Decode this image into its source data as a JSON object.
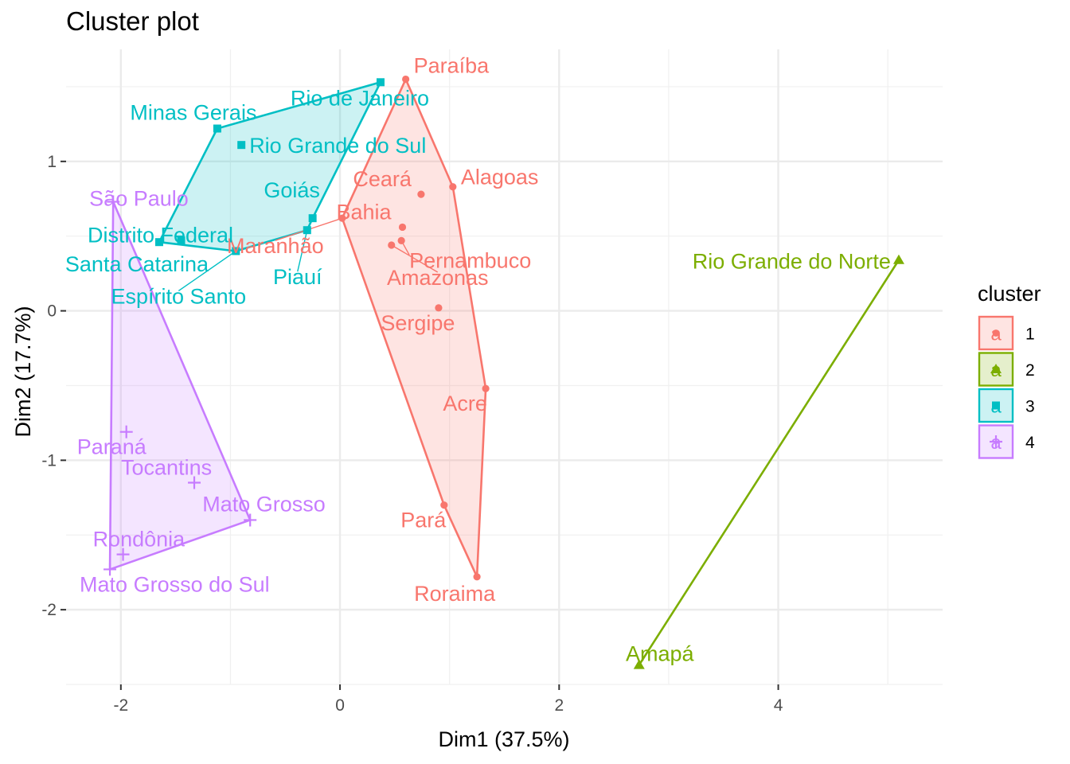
{
  "chart_data": {
    "type": "scatter",
    "title": "Cluster plot",
    "xlabel": "Dim1 (37.5%)",
    "ylabel": "Dim2 (17.7%)",
    "xlim": [
      -2.5,
      5.5
    ],
    "ylim": [
      -2.5,
      1.75
    ],
    "x_ticks": [
      -2,
      0,
      2,
      4
    ],
    "y_ticks": [
      -2,
      -1,
      0,
      1
    ],
    "x_tick_labels": [
      "-2",
      "0",
      "2",
      "4"
    ],
    "y_tick_labels": [
      "-2",
      "-1",
      "0",
      "1"
    ],
    "grid": true,
    "legend": {
      "title": "cluster",
      "position": "right",
      "glyph": "a",
      "entries": [
        "1",
        "2",
        "3",
        "4"
      ]
    },
    "series": [
      {
        "name": "1",
        "color": "#F8766D",
        "marker": "circle",
        "hull": [
          [
            0.6,
            1.55
          ],
          [
            1.03,
            0.83
          ],
          [
            1.33,
            -0.52
          ],
          [
            1.25,
            -1.78
          ],
          [
            0.95,
            -1.3
          ],
          [
            0.02,
            0.62
          ]
        ],
        "points": [
          {
            "label": "Paraíba",
            "x": 0.6,
            "y": 1.55
          },
          {
            "label": "Alagoas",
            "x": 1.03,
            "y": 0.83
          },
          {
            "label": "Ceará",
            "x": 0.74,
            "y": 0.78
          },
          {
            "label": "Bahia",
            "x": 0.57,
            "y": 0.56
          },
          {
            "label": "Maranhão",
            "x": 0.02,
            "y": 0.62
          },
          {
            "label": "Pernambuco",
            "x": 0.56,
            "y": 0.47
          },
          {
            "label": "Amazonas",
            "x": 0.47,
            "y": 0.44
          },
          {
            "label": "Sergipe",
            "x": 0.9,
            "y": 0.02
          },
          {
            "label": "Acre",
            "x": 1.33,
            "y": -0.52
          },
          {
            "label": "Pará",
            "x": 0.95,
            "y": -1.3
          },
          {
            "label": "Roraima",
            "x": 1.25,
            "y": -1.78
          }
        ]
      },
      {
        "name": "2",
        "color": "#7CAE00",
        "marker": "triangle",
        "hull": [
          [
            5.1,
            0.34
          ],
          [
            2.73,
            -2.37
          ]
        ],
        "points": [
          {
            "label": "Rio Grande do Norte",
            "x": 5.1,
            "y": 0.34
          },
          {
            "label": "Amapá",
            "x": 2.73,
            "y": -2.37
          }
        ]
      },
      {
        "name": "3",
        "color": "#00BFC4",
        "marker": "square",
        "hull": [
          [
            0.37,
            1.53
          ],
          [
            -0.25,
            0.62
          ],
          [
            -0.3,
            0.54
          ],
          [
            -0.95,
            0.4
          ],
          [
            -1.65,
            0.46
          ],
          [
            -1.12,
            1.22
          ]
        ],
        "points": [
          {
            "label": "Rio de Janeiro",
            "x": 0.37,
            "y": 1.53
          },
          {
            "label": "Minas Gerais",
            "x": -1.12,
            "y": 1.22
          },
          {
            "label": "Rio Grande do Sul",
            "x": -0.9,
            "y": 1.11
          },
          {
            "label": "Goiás",
            "x": -0.25,
            "y": 0.62
          },
          {
            "label": "Piauí",
            "x": -0.3,
            "y": 0.54
          },
          {
            "label": "Distrito Federal",
            "x": -1.45,
            "y": 0.47
          },
          {
            "label": "Santa Catarina",
            "x": -1.65,
            "y": 0.46
          },
          {
            "label": "Espírito Santo",
            "x": -0.95,
            "y": 0.4
          }
        ]
      },
      {
        "name": "4",
        "color": "#C77CFF",
        "marker": "plus",
        "hull": [
          [
            -2.07,
            0.73
          ],
          [
            -0.82,
            -1.4
          ],
          [
            -2.1,
            -1.73
          ]
        ],
        "points": [
          {
            "label": "São Paulo",
            "x": -2.07,
            "y": 0.73
          },
          {
            "label": "Paraná",
            "x": -1.95,
            "y": -0.81
          },
          {
            "label": "Tocantins",
            "x": -1.33,
            "y": -1.15
          },
          {
            "label": "Mato Grosso",
            "x": -0.82,
            "y": -1.4
          },
          {
            "label": "Rondônia",
            "x": -1.98,
            "y": -1.63
          },
          {
            "label": "Mato Grosso do Sul",
            "x": -2.1,
            "y": -1.73
          }
        ]
      }
    ]
  }
}
